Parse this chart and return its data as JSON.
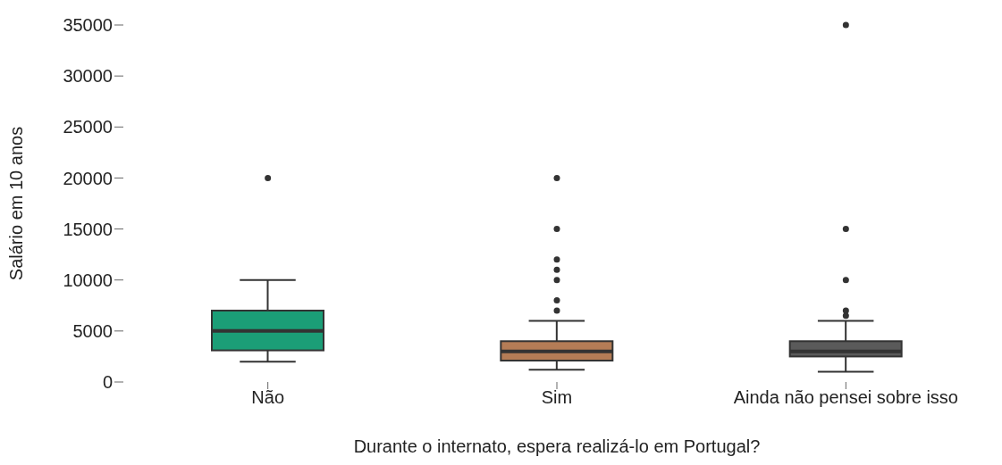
{
  "chart_data": {
    "type": "box",
    "xlabel": "Durante o internato, espera realizá-lo em Portugal?",
    "ylabel": "Salário em 10 anos",
    "categories": [
      "Não",
      "Sim",
      "Ainda não pensei sobre isso"
    ],
    "colors": [
      "#1b9e77",
      "#b47c56",
      "#5a5a5a"
    ],
    "boxes": [
      {
        "low": 2000,
        "q1": 3100,
        "median": 5000,
        "q3": 7000,
        "high": 10000,
        "outliers": [
          20000
        ]
      },
      {
        "low": 1200,
        "q1": 2100,
        "median": 3000,
        "q3": 4000,
        "high": 6000,
        "outliers": [
          20000,
          15000,
          12000,
          11000,
          10000,
          8000,
          7000
        ]
      },
      {
        "low": 1000,
        "q1": 2500,
        "median": 3000,
        "q3": 4000,
        "high": 6000,
        "outliers": [
          35000,
          15000,
          10000,
          7000,
          6500
        ]
      }
    ],
    "ylim": [
      0,
      35000
    ],
    "yticks": [
      0,
      5000,
      10000,
      15000,
      20000,
      25000,
      30000,
      35000
    ],
    "grid": false,
    "legend": false
  }
}
